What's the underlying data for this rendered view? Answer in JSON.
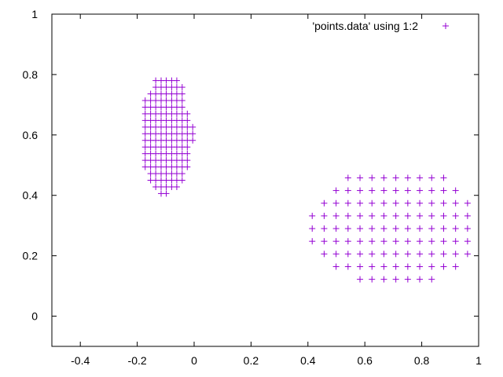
{
  "chart_data": {
    "type": "scatter",
    "title": "",
    "xlabel": "",
    "ylabel": "",
    "xlim": [
      -0.5,
      1.0
    ],
    "ylim": [
      -0.1,
      1.0
    ],
    "x_ticks": [
      -0.4,
      -0.2,
      0,
      0.2,
      0.4,
      0.6,
      0.8,
      1
    ],
    "x_tick_labels": [
      "-0.4",
      "-0.2",
      "0",
      "0.2",
      "0.4",
      "0.6",
      "0.8",
      "1"
    ],
    "y_ticks": [
      0,
      0.2,
      0.4,
      0.6,
      0.8,
      1
    ],
    "y_tick_labels": [
      "0",
      "0.2",
      "0.4",
      "0.6",
      "0.8",
      "1"
    ],
    "grid": false,
    "legend": {
      "placement": "top-right",
      "entries": [
        "'points.data' using 1:2"
      ]
    },
    "marker": "plus",
    "color": "#9400d3",
    "series": [
      {
        "name": "'points.data' using 1:2",
        "rows": [
          {
            "y": 0.78,
            "x": [
              -0.135,
              -0.116,
              -0.098,
              -0.079,
              -0.061
            ]
          },
          {
            "y": 0.758,
            "x": [
              -0.135,
              -0.116,
              -0.098,
              -0.079,
              -0.061,
              -0.042
            ]
          },
          {
            "y": 0.736,
            "x": [
              -0.153,
              -0.135,
              -0.116,
              -0.098,
              -0.079,
              -0.061,
              -0.042
            ]
          },
          {
            "y": 0.714,
            "x": [
              -0.172,
              -0.153,
              -0.135,
              -0.116,
              -0.098,
              -0.079,
              -0.061,
              -0.042
            ]
          },
          {
            "y": 0.692,
            "x": [
              -0.172,
              -0.153,
              -0.135,
              -0.116,
              -0.098,
              -0.079,
              -0.061,
              -0.042
            ]
          },
          {
            "y": 0.67,
            "x": [
              -0.172,
              -0.153,
              -0.135,
              -0.116,
              -0.098,
              -0.079,
              -0.061,
              -0.042,
              -0.024
            ]
          },
          {
            "y": 0.648,
            "x": [
              -0.172,
              -0.153,
              -0.135,
              -0.116,
              -0.098,
              -0.079,
              -0.061,
              -0.042,
              -0.024
            ]
          },
          {
            "y": 0.626,
            "x": [
              -0.172,
              -0.153,
              -0.135,
              -0.116,
              -0.098,
              -0.079,
              -0.061,
              -0.042,
              -0.024,
              -0.005
            ]
          },
          {
            "y": 0.604,
            "x": [
              -0.172,
              -0.153,
              -0.135,
              -0.116,
              -0.098,
              -0.079,
              -0.061,
              -0.042,
              -0.024,
              -0.005
            ]
          },
          {
            "y": 0.582,
            "x": [
              -0.172,
              -0.153,
              -0.135,
              -0.116,
              -0.098,
              -0.079,
              -0.061,
              -0.042,
              -0.024,
              -0.005
            ]
          },
          {
            "y": 0.56,
            "x": [
              -0.172,
              -0.153,
              -0.135,
              -0.116,
              -0.098,
              -0.079,
              -0.061,
              -0.042,
              -0.024
            ]
          },
          {
            "y": 0.538,
            "x": [
              -0.172,
              -0.153,
              -0.135,
              -0.116,
              -0.098,
              -0.079,
              -0.061,
              -0.042,
              -0.024
            ]
          },
          {
            "y": 0.516,
            "x": [
              -0.172,
              -0.153,
              -0.135,
              -0.116,
              -0.098,
              -0.079,
              -0.061,
              -0.042,
              -0.024
            ]
          },
          {
            "y": 0.494,
            "x": [
              -0.172,
              -0.153,
              -0.135,
              -0.116,
              -0.098,
              -0.079,
              -0.061,
              -0.042,
              -0.024
            ]
          },
          {
            "y": 0.472,
            "x": [
              -0.153,
              -0.135,
              -0.116,
              -0.098,
              -0.079,
              -0.061,
              -0.042
            ]
          },
          {
            "y": 0.45,
            "x": [
              -0.153,
              -0.135,
              -0.116,
              -0.098,
              -0.079,
              -0.061,
              -0.042
            ]
          },
          {
            "y": 0.428,
            "x": [
              -0.135,
              -0.116,
              -0.098,
              -0.079,
              -0.061
            ]
          },
          {
            "y": 0.406,
            "x": [
              -0.116,
              -0.098
            ]
          },
          {
            "y": 0.458,
            "x": [
              0.541,
              0.583,
              0.625,
              0.667,
              0.709,
              0.751,
              0.793,
              0.835,
              0.877
            ]
          },
          {
            "y": 0.416,
            "x": [
              0.499,
              0.541,
              0.583,
              0.625,
              0.667,
              0.709,
              0.751,
              0.793,
              0.835,
              0.877,
              0.919
            ]
          },
          {
            "y": 0.374,
            "x": [
              0.457,
              0.499,
              0.541,
              0.583,
              0.625,
              0.667,
              0.709,
              0.751,
              0.793,
              0.835,
              0.877,
              0.919,
              0.961
            ]
          },
          {
            "y": 0.332,
            "x": [
              0.415,
              0.457,
              0.499,
              0.541,
              0.583,
              0.625,
              0.667,
              0.709,
              0.751,
              0.793,
              0.835,
              0.877,
              0.919,
              0.961
            ]
          },
          {
            "y": 0.29,
            "x": [
              0.415,
              0.457,
              0.499,
              0.541,
              0.583,
              0.625,
              0.667,
              0.709,
              0.751,
              0.793,
              0.835,
              0.877,
              0.919,
              0.961
            ]
          },
          {
            "y": 0.248,
            "x": [
              0.415,
              0.457,
              0.499,
              0.541,
              0.583,
              0.625,
              0.667,
              0.709,
              0.751,
              0.793,
              0.835,
              0.877,
              0.919,
              0.961
            ]
          },
          {
            "y": 0.206,
            "x": [
              0.457,
              0.499,
              0.541,
              0.583,
              0.625,
              0.667,
              0.709,
              0.751,
              0.793,
              0.835,
              0.877,
              0.919,
              0.961
            ]
          },
          {
            "y": 0.164,
            "x": [
              0.499,
              0.541,
              0.583,
              0.625,
              0.667,
              0.709,
              0.751,
              0.793,
              0.835,
              0.877,
              0.919
            ]
          },
          {
            "y": 0.122,
            "x": [
              0.583,
              0.625,
              0.667,
              0.709,
              0.751,
              0.793,
              0.835
            ]
          }
        ]
      }
    ]
  }
}
